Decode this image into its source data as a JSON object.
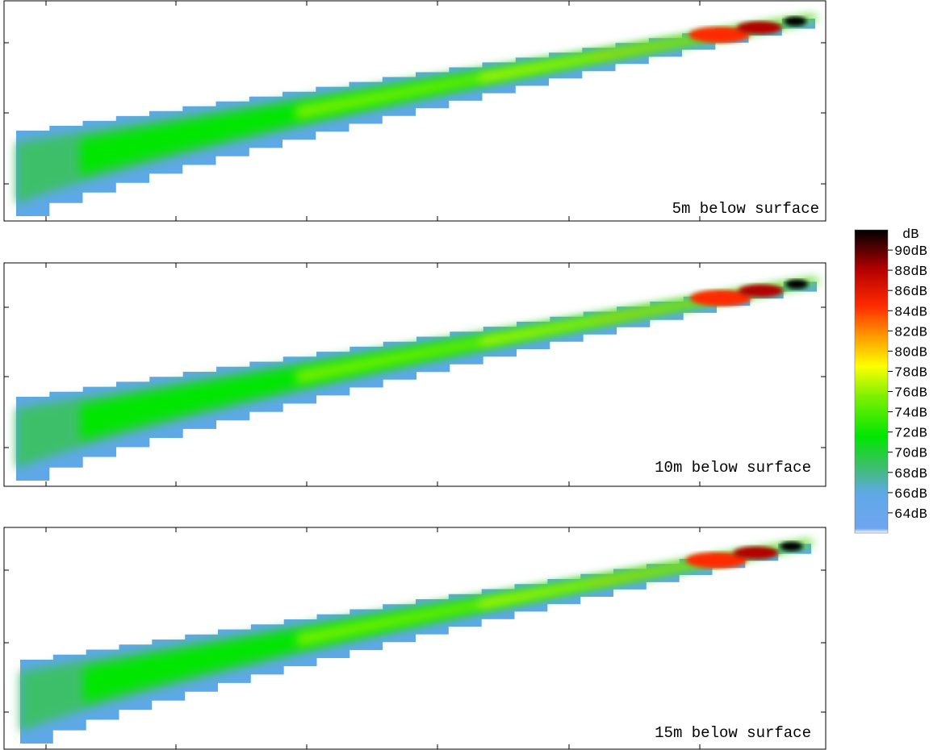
{
  "chart_data": {
    "type": "heatmap",
    "panels": [
      {
        "label": "5m below surface",
        "max_db": 91
      },
      {
        "label": "10m below surface",
        "max_db": 91
      },
      {
        "label": "15m below surface",
        "max_db": 90
      }
    ],
    "colorbar": {
      "title": "dB",
      "ticks": [
        "90dB",
        "88dB",
        "86dB",
        "84dB",
        "82dB",
        "80dB",
        "78dB",
        "76dB",
        "74dB",
        "72dB",
        "70dB",
        "68dB",
        "66dB",
        "64dB"
      ],
      "min": 62,
      "max": 92
    },
    "grid": false
  }
}
